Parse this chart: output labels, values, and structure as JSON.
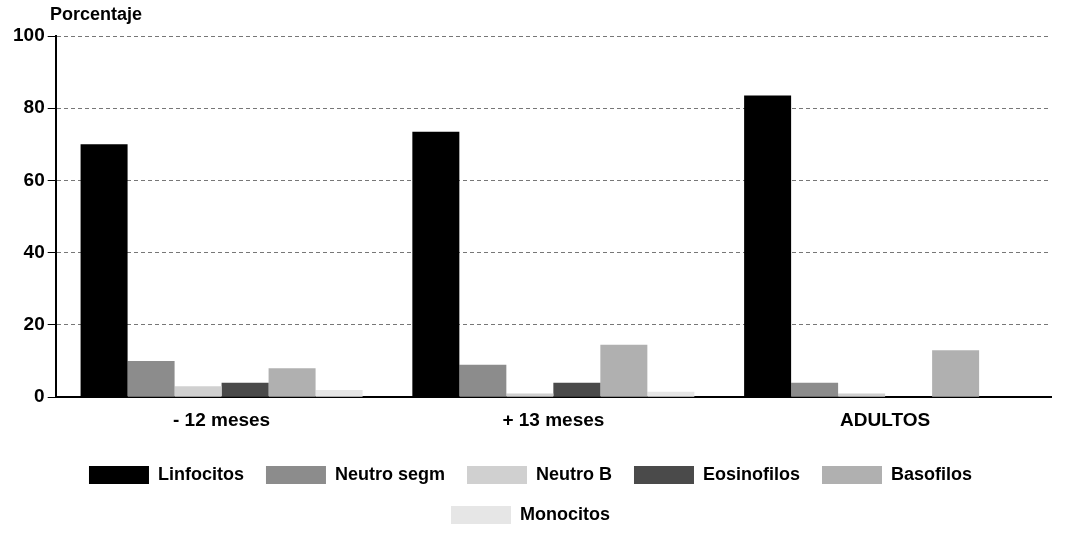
{
  "chart_data": {
    "type": "bar",
    "ylabel": "Porcentaje",
    "categories": [
      "- 12 meses",
      "+ 13 meses",
      "ADULTOS"
    ],
    "series": [
      {
        "name": "Linfocitos",
        "color": "#000000",
        "values": [
          70,
          73.5,
          83.5
        ]
      },
      {
        "name": "Neutro segm",
        "color": "#8c8c8c",
        "values": [
          10,
          9,
          4
        ]
      },
      {
        "name": "Neutro B",
        "color": "#d0d0d0",
        "values": [
          3,
          1,
          1
        ]
      },
      {
        "name": "Eosinofilos",
        "color": "#4a4a4a",
        "values": [
          4,
          4,
          0
        ]
      },
      {
        "name": "Basofilos",
        "color": "#b0b0b0",
        "values": [
          8,
          14.5,
          13
        ]
      },
      {
        "name": "Monocitos",
        "color": "#e6e6e6",
        "values": [
          2,
          1.5,
          0
        ]
      }
    ],
    "ylim": [
      0,
      100
    ],
    "yticks": [
      0,
      20,
      40,
      60,
      80,
      100
    ],
    "grid": "y",
    "legend": "bottom"
  }
}
